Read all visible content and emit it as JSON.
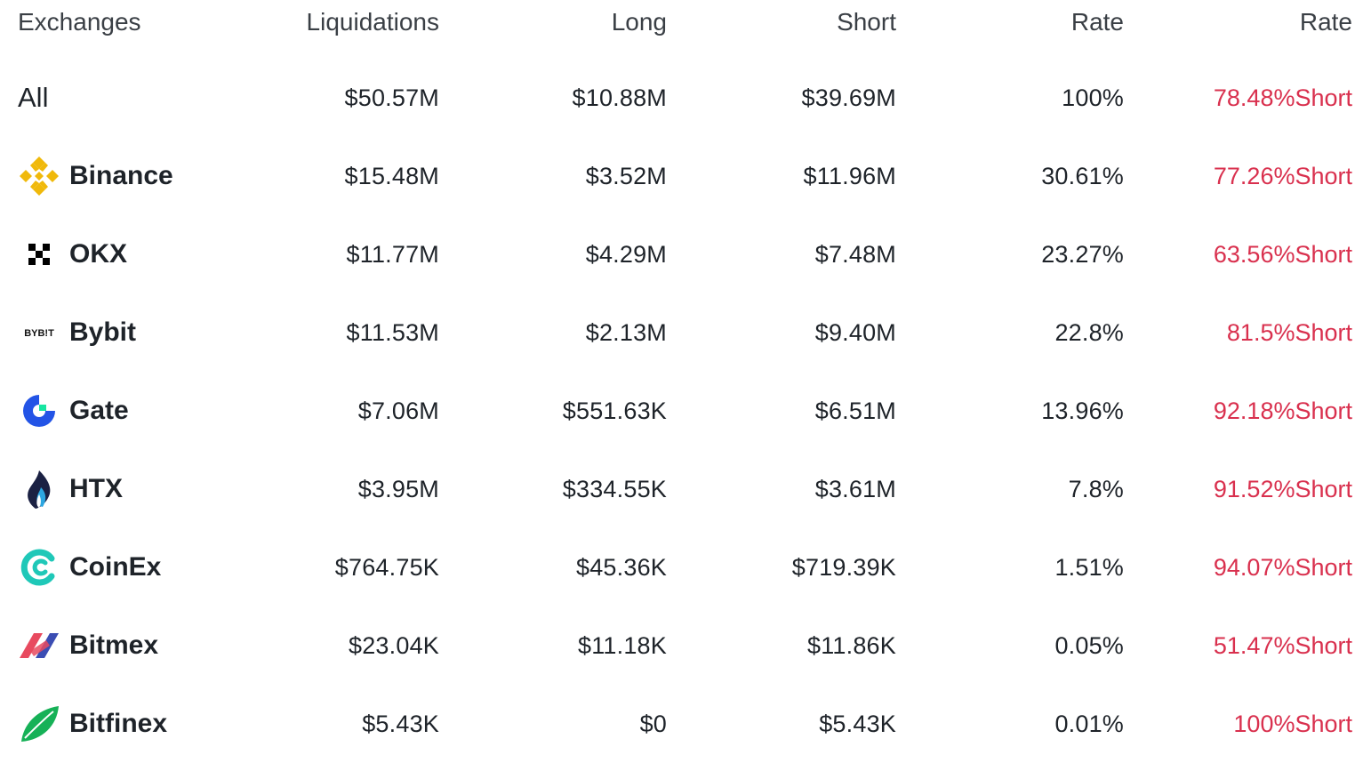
{
  "header": {
    "exchanges": "Exchanges",
    "liquidations": "Liquidations",
    "long": "Long",
    "short": "Short",
    "rate": "Rate",
    "rate2": "Rate"
  },
  "all": {
    "name": "All",
    "liquidations": "$50.57M",
    "long": "$10.88M",
    "short": "$39.69M",
    "rate": "100%",
    "short_rate": "78.48%Short"
  },
  "exchanges": [
    {
      "name": "Binance",
      "icon": "binance-icon",
      "liquidations": "$15.48M",
      "long": "$3.52M",
      "short": "$11.96M",
      "rate": "30.61%",
      "short_rate": "77.26%Short"
    },
    {
      "name": "OKX",
      "icon": "okx-icon",
      "liquidations": "$11.77M",
      "long": "$4.29M",
      "short": "$7.48M",
      "rate": "23.27%",
      "short_rate": "63.56%Short"
    },
    {
      "name": "Bybit",
      "icon": "bybit-icon",
      "logo_text": "BYB!T",
      "liquidations": "$11.53M",
      "long": "$2.13M",
      "short": "$9.40M",
      "rate": "22.8%",
      "short_rate": "81.5%Short"
    },
    {
      "name": "Gate",
      "icon": "gate-icon",
      "liquidations": "$7.06M",
      "long": "$551.63K",
      "short": "$6.51M",
      "rate": "13.96%",
      "short_rate": "92.18%Short"
    },
    {
      "name": "HTX",
      "icon": "htx-icon",
      "liquidations": "$3.95M",
      "long": "$334.55K",
      "short": "$3.61M",
      "rate": "7.8%",
      "short_rate": "91.52%Short"
    },
    {
      "name": "CoinEx",
      "icon": "coinex-icon",
      "liquidations": "$764.75K",
      "long": "$45.36K",
      "short": "$719.39K",
      "rate": "1.51%",
      "short_rate": "94.07%Short"
    },
    {
      "name": "Bitmex",
      "icon": "bitmex-icon",
      "liquidations": "$23.04K",
      "long": "$11.18K",
      "short": "$11.86K",
      "rate": "0.05%",
      "short_rate": "51.47%Short"
    },
    {
      "name": "Bitfinex",
      "icon": "bitfinex-icon",
      "liquidations": "$5.43K",
      "long": "$0",
      "short": "$5.43K",
      "rate": "0.01%",
      "short_rate": "100%Short"
    }
  ],
  "colors": {
    "short_rate": "#d9304e",
    "binance": "#f0b90b",
    "gate": "#2354e6",
    "gate_accent": "#17e6a1",
    "htx_dark": "#1b2143",
    "htx_blue": "#2ca6e0",
    "coinex": "#1fc8b8",
    "bitmex_red": "#e84a5f",
    "bitmex_blue": "#3b4db3",
    "bitfinex": "#16b157"
  }
}
